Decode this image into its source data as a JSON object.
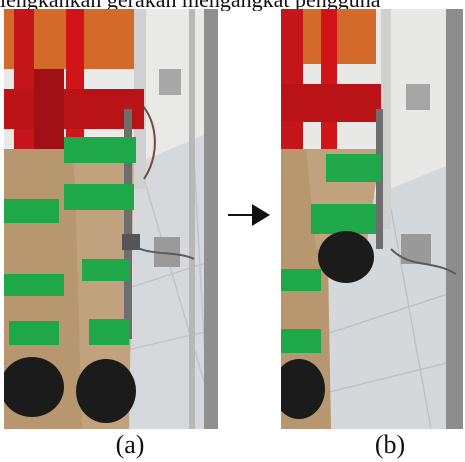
{
  "header_fragment": "lengkahkan gerakan mengangkat pengguna",
  "panels": [
    {
      "caption": "(a)"
    },
    {
      "caption": "(b)"
    }
  ],
  "colors": {
    "strap_green": "#1fa84a",
    "harness_red": "#d0151a",
    "pants_khaki": "#b99a7a",
    "shoe_black": "#1b1b1b",
    "floor_tile": "#d7dadd",
    "wall": "#e7e7e6"
  },
  "icons": {
    "transition_arrow": "arrow-right-icon"
  }
}
